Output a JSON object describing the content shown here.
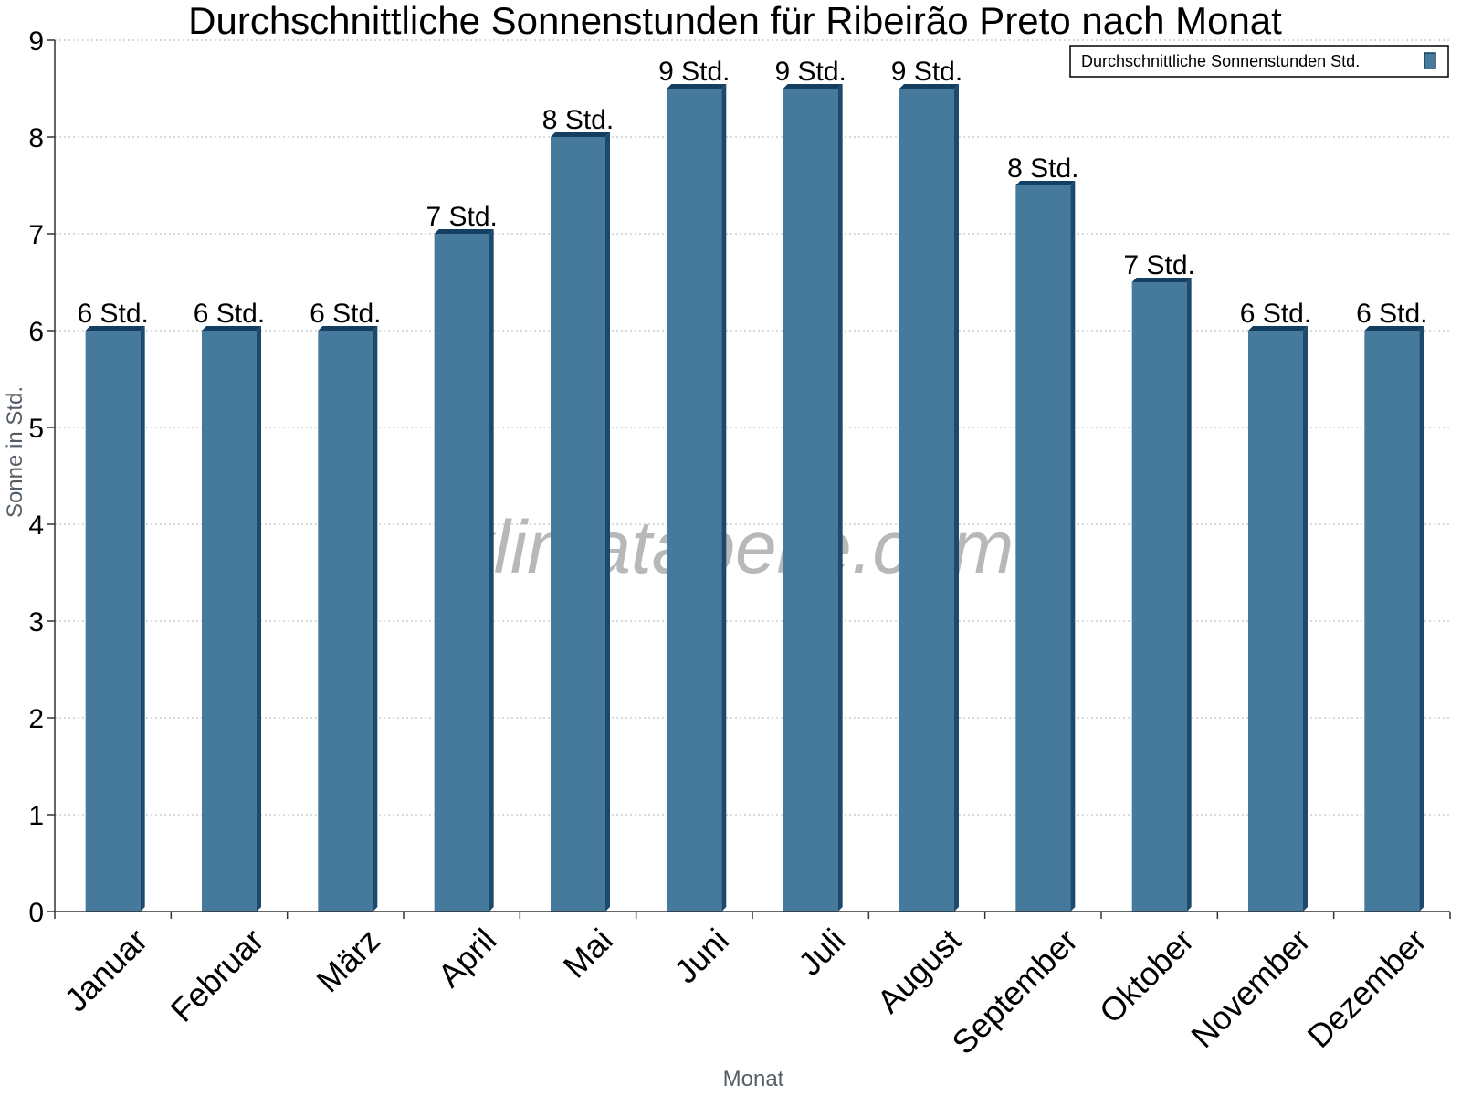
{
  "chart_data": {
    "type": "bar",
    "title": "Durchschnittliche Sonnenstunden für Ribeirão Preto nach Monat",
    "xlabel": "Monat",
    "ylabel": "Sonne in Std.",
    "ylim": [
      0,
      9
    ],
    "yticks": [
      "0",
      "1",
      "2",
      "3",
      "4",
      "5",
      "6",
      "7",
      "8",
      "9"
    ],
    "grid": true,
    "legend_position": "top-right",
    "categories": [
      "Januar",
      "Februar",
      "März",
      "April",
      "Mai",
      "Juni",
      "Juli",
      "August",
      "September",
      "Oktober",
      "November",
      "Dezember"
    ],
    "series": [
      {
        "name": "Durchschnittliche Sonnenstunden Std.",
        "color": "#457a9c",
        "values": [
          6,
          6,
          6,
          7,
          8,
          8.5,
          8.5,
          8.5,
          7.5,
          6.5,
          6,
          6
        ],
        "labels": [
          "6 Std.",
          "6 Std.",
          "6 Std.",
          "7 Std.",
          "8 Std.",
          "9 Std.",
          "9 Std.",
          "9 Std.",
          "8 Std.",
          "7 Std.",
          "6 Std.",
          "6 Std."
        ]
      }
    ],
    "watermark": "klimatabelle.com"
  }
}
